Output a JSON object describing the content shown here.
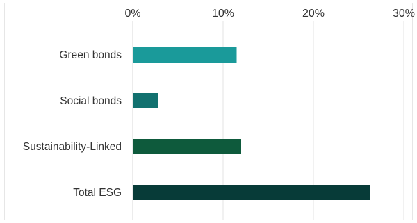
{
  "chart_data": {
    "type": "bar",
    "orientation": "horizontal",
    "categories": [
      "Green bonds",
      "Social bonds",
      "Sustainability-Linked",
      "Total ESG"
    ],
    "values": [
      11.5,
      2.8,
      12.0,
      26.3
    ],
    "bar_colors": [
      "#1a9a9a",
      "#12716f",
      "#0e5a3c",
      "#073b38"
    ],
    "x_ticks": [
      "0%",
      "10%",
      "20%",
      "30%"
    ],
    "tick_values": [
      0,
      10,
      20,
      30
    ],
    "xlim": [
      0,
      30
    ],
    "grid": true,
    "axis_position": "top",
    "title": "",
    "xlabel": "",
    "ylabel": ""
  }
}
